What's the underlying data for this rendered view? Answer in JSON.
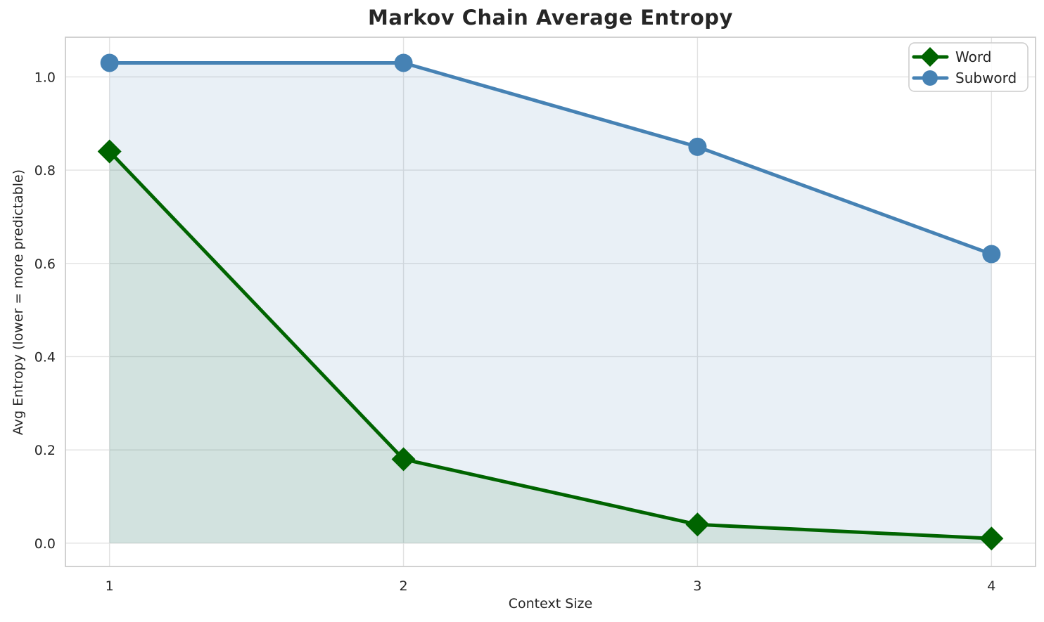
{
  "chart_data": {
    "type": "line",
    "title": "Markov Chain Average Entropy",
    "xlabel": "Context Size",
    "ylabel": "Avg Entropy (lower = more predictable)",
    "x": [
      1,
      2,
      3,
      4
    ],
    "series": [
      {
        "name": "Word",
        "values": [
          0.84,
          0.18,
          0.04,
          0.01
        ],
        "color": "#006400",
        "marker": "diamond",
        "fill_to_zero": true,
        "fill_opacity": 0.1
      },
      {
        "name": "Subword",
        "values": [
          1.03,
          1.03,
          0.85,
          0.62
        ],
        "color": "#4682b4",
        "marker": "circle",
        "fill_to_zero": true,
        "fill_opacity": 0.12
      }
    ],
    "xlim": [
      0.85,
      4.15
    ],
    "ylim": [
      -0.05,
      1.085
    ],
    "xticks": [
      1,
      2,
      3,
      4
    ],
    "xtick_labels": [
      "1",
      "2",
      "3",
      "4"
    ],
    "yticks": [
      0.0,
      0.2,
      0.4,
      0.6,
      0.8,
      1.0
    ],
    "ytick_labels": [
      "0.0",
      "0.2",
      "0.4",
      "0.6",
      "0.8",
      "1.0"
    ],
    "grid": true,
    "legend_position": "top-right",
    "legend_labels": [
      "Word",
      "Subword"
    ],
    "colors": {
      "word_line": "#006400",
      "subword_line": "#4682b4",
      "grid": "#e2e2e2",
      "frame": "#cccccc",
      "text": "#262626",
      "legend_border": "#cccccc"
    }
  }
}
